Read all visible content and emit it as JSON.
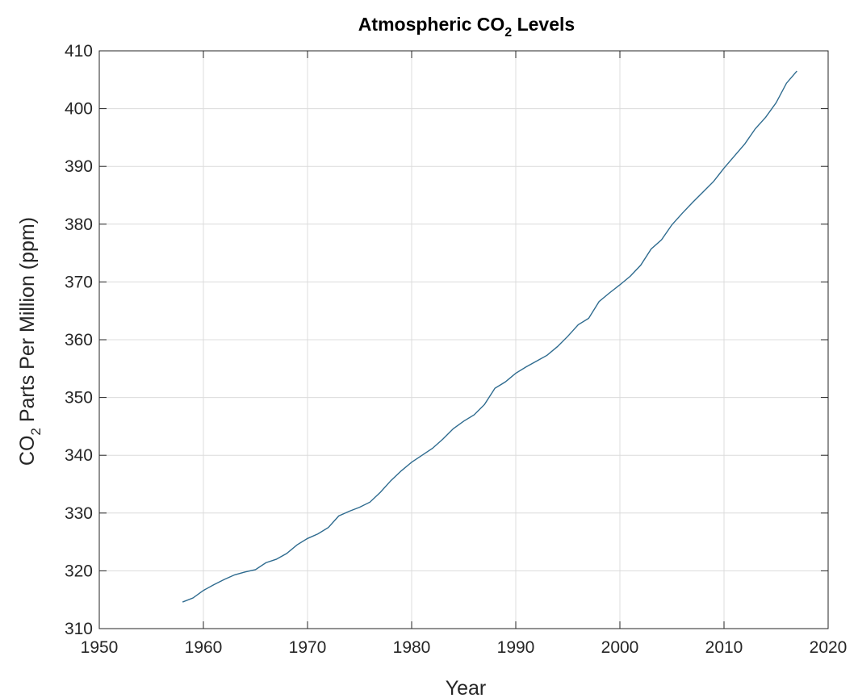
{
  "chart_data": {
    "type": "line",
    "title": {
      "pre": "Atmospheric CO",
      "sub": "2",
      "post": " Levels"
    },
    "xlabel": "Year",
    "ylabel": {
      "pre": "CO",
      "sub": "2",
      "post": " Parts Per Million (ppm)"
    },
    "xlim": [
      1950,
      2020
    ],
    "ylim": [
      310,
      410
    ],
    "xticks": [
      "1950",
      "1960",
      "1970",
      "1980",
      "1990",
      "2000",
      "2010",
      "2020"
    ],
    "yticks": [
      "310",
      "320",
      "330",
      "340",
      "350",
      "360",
      "370",
      "380",
      "390",
      "400",
      "410"
    ],
    "grid": true,
    "line_color": "#2e6b8f",
    "series": [
      {
        "x": [
          1958,
          1959,
          1960,
          1961,
          1962,
          1963,
          1964,
          1965,
          1966,
          1967,
          1968,
          1969,
          1970,
          1971,
          1972,
          1973,
          1974,
          1975,
          1976,
          1977,
          1978,
          1979,
          1980,
          1981,
          1982,
          1983,
          1984,
          1985,
          1986,
          1987,
          1988,
          1989,
          1990,
          1991,
          1992,
          1993,
          1994,
          1995,
          1996,
          1997,
          1998,
          1999,
          2000,
          2001,
          2002,
          2003,
          2004,
          2005,
          2006,
          2007,
          2008,
          2009,
          2010,
          2011,
          2012,
          2013,
          2014,
          2015,
          2016,
          2017
        ],
        "y": [
          314.6,
          315.3,
          316.6,
          317.6,
          318.5,
          319.3,
          319.8,
          320.2,
          321.4,
          322.0,
          323.0,
          324.5,
          325.6,
          326.4,
          327.5,
          329.5,
          330.3,
          331.0,
          331.9,
          333.6,
          335.6,
          337.3,
          338.8,
          340.0,
          341.2,
          342.8,
          344.6,
          345.9,
          347.0,
          348.8,
          351.6,
          352.7,
          354.2,
          355.3,
          356.3,
          357.3,
          358.8,
          360.6,
          362.6,
          363.7,
          366.6,
          368.1,
          369.5,
          371.0,
          372.9,
          375.7,
          377.3,
          379.9,
          381.9,
          383.8,
          385.6,
          387.4,
          389.7,
          391.8,
          393.9,
          396.5,
          398.5,
          401.0,
          404.4,
          406.5
        ]
      }
    ]
  }
}
